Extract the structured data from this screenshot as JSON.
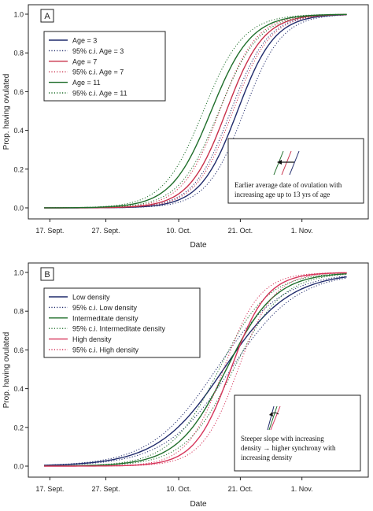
{
  "chart_data": [
    {
      "type": "line",
      "panel_label": "A",
      "xlabel": "Date",
      "ylabel": "Prop. having ovulated",
      "x_ticks": [
        "17. Sept.",
        "27. Sept.",
        "10. Oct.",
        "21. Oct.",
        "1. Nov."
      ],
      "x_tick_days": [
        0,
        10,
        23,
        34,
        45
      ],
      "xlim": [
        -3,
        56
      ],
      "ylim": [
        0,
        1
      ],
      "y_ticks": [
        "0.0",
        "0.2",
        "0.4",
        "0.6",
        "0.8",
        "1.0"
      ],
      "y_tick_values": [
        0,
        0.2,
        0.4,
        0.6,
        0.8,
        1.0
      ],
      "legend_position": "top-left",
      "series": [
        {
          "name": "Age = 3",
          "color": "#1f2a6b",
          "dash": "solid",
          "midpoint_day": 33.5,
          "slope": 0.3,
          "ci_width": 1.2
        },
        {
          "name": "Age = 7",
          "color": "#c8304a",
          "dash": "solid",
          "midpoint_day": 31.5,
          "slope": 0.3,
          "ci_width": 1.2
        },
        {
          "name": "Age = 11",
          "color": "#1f6e2a",
          "dash": "solid",
          "midpoint_day": 28.8,
          "slope": 0.28,
          "ci_width": 1.4
        }
      ],
      "legend": [
        {
          "label": "Age = 3",
          "color": "#1f2a6b",
          "dash": "solid"
        },
        {
          "label": "95% c.i. Age = 3",
          "color": "#1f2a6b",
          "dash": "dotted"
        },
        {
          "label": "Age = 7",
          "color": "#c8304a",
          "dash": "solid"
        },
        {
          "label": "95% c.i. Age = 7",
          "color": "#c8304a",
          "dash": "dotted"
        },
        {
          "label": "Age = 11",
          "color": "#1f6e2a",
          "dash": "solid"
        },
        {
          "label": "95% c.i. Age = 11",
          "color": "#1f6e2a",
          "dash": "dotted"
        }
      ],
      "annotation": {
        "lines": [
          "Earlier average date of ovulation with",
          "increasing age up to 13 yrs of age"
        ],
        "icon": "shift-left-arrow-icon"
      }
    },
    {
      "type": "line",
      "panel_label": "B",
      "xlabel": "Date",
      "ylabel": "Prop. having ovulated",
      "x_ticks": [
        "17. Sept.",
        "27. Sept.",
        "10. Oct.",
        "21. Oct.",
        "1. Nov."
      ],
      "x_tick_days": [
        0,
        10,
        23,
        34,
        45
      ],
      "xlim": [
        -3,
        56
      ],
      "ylim": [
        0,
        1
      ],
      "y_ticks": [
        "0.0",
        "0.2",
        "0.4",
        "0.6",
        "0.8",
        "1.0"
      ],
      "y_tick_values": [
        0,
        0.2,
        0.4,
        0.6,
        0.8,
        1.0
      ],
      "legend_position": "top-left",
      "series": [
        {
          "name": "Low density",
          "color": "#1f2a6b",
          "dash": "solid",
          "midpoint_day": 31.0,
          "slope": 0.17,
          "ci_width": 1.3
        },
        {
          "name": "Intermeditate density",
          "color": "#1f6e2a",
          "dash": "solid",
          "midpoint_day": 31.5,
          "slope": 0.23,
          "ci_width": 1.3
        },
        {
          "name": "High density",
          "color": "#d6345a",
          "dash": "solid",
          "midpoint_day": 32.3,
          "slope": 0.31,
          "ci_width": 1.3
        }
      ],
      "legend": [
        {
          "label": "Low density",
          "color": "#1f2a6b",
          "dash": "solid"
        },
        {
          "label": "95% c.i. Low density",
          "color": "#1f2a6b",
          "dash": "dotted"
        },
        {
          "label": "Intermeditate density",
          "color": "#1f6e2a",
          "dash": "solid"
        },
        {
          "label": "95% c.i. Intermeditate density",
          "color": "#1f6e2a",
          "dash": "dotted"
        },
        {
          "label": "High density",
          "color": "#d6345a",
          "dash": "solid"
        },
        {
          "label": "95% c.i. High density",
          "color": "#d6345a",
          "dash": "dotted"
        }
      ],
      "annotation": {
        "lines": [
          "Steeper slope with increasing",
          "density → higher synchrony with",
          "increasing density"
        ],
        "icon": "rotate-arrow-icon"
      }
    }
  ]
}
